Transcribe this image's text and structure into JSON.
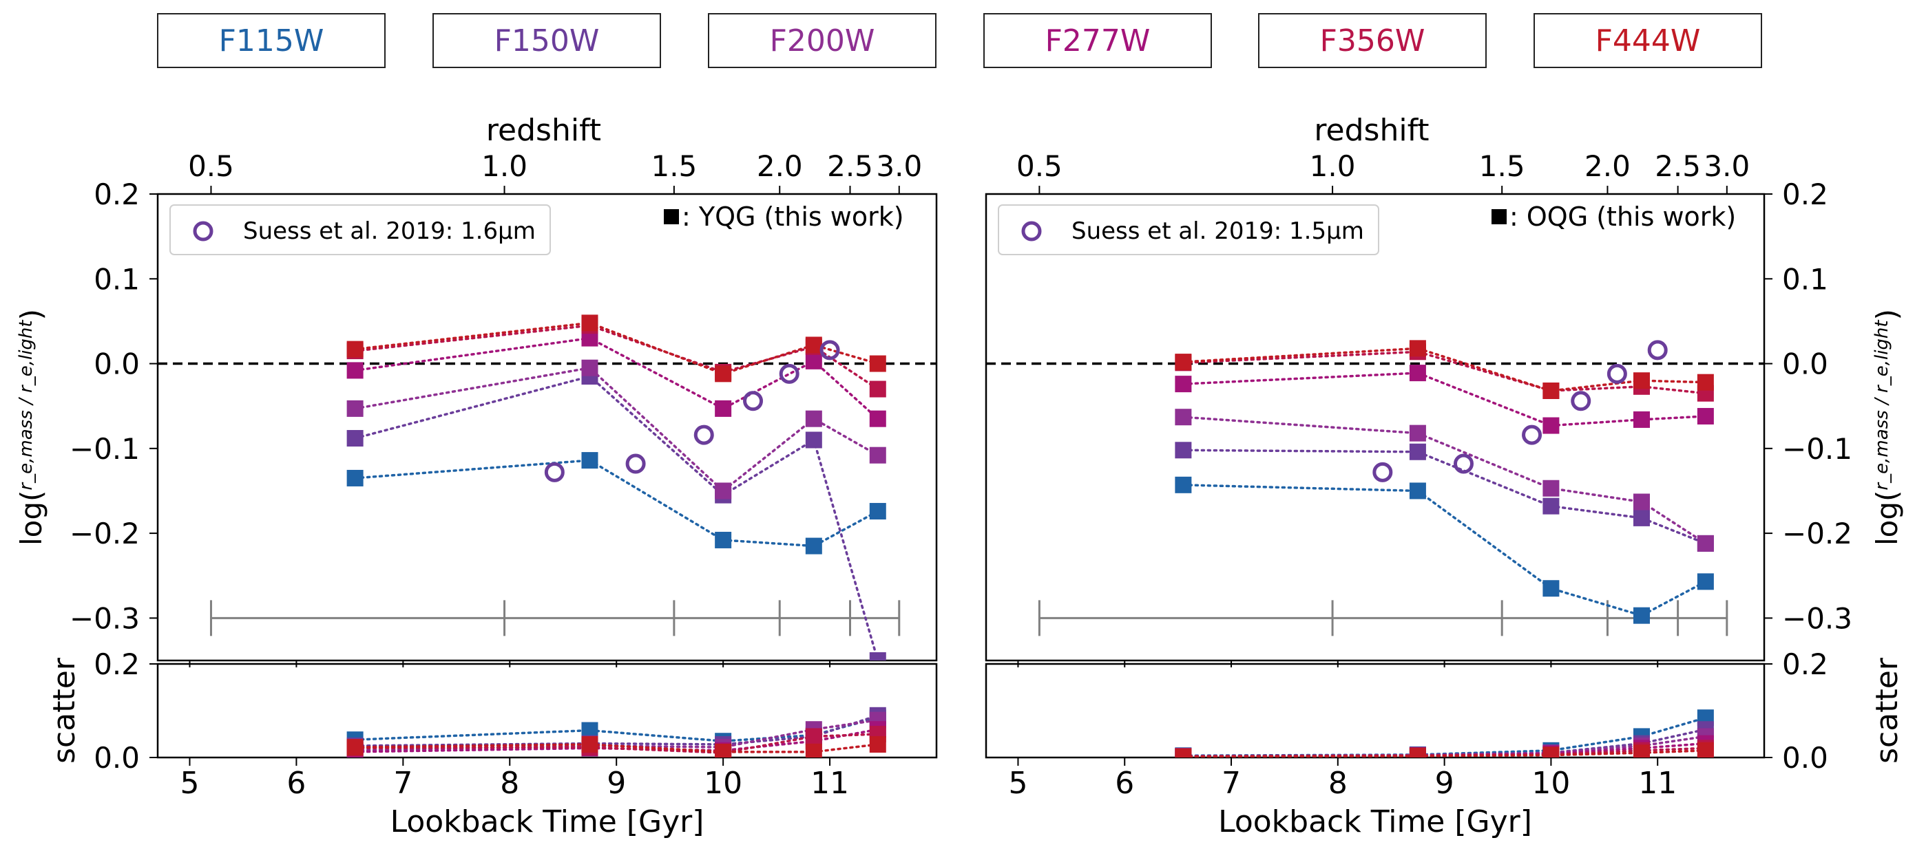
{
  "legend_boxes": [
    {
      "label": "F115W",
      "color": "#1f63a6"
    },
    {
      "label": "F150W",
      "color": "#6a3d9a"
    },
    {
      "label": "F200W",
      "color": "#8e3092"
    },
    {
      "label": "F277W",
      "color": "#a3137a"
    },
    {
      "label": "F356W",
      "color": "#b81549"
    },
    {
      "label": "F444W",
      "color": "#c11a24"
    }
  ],
  "chart_data": [
    {
      "type": "scatter",
      "panel": "YQG",
      "title": "",
      "xlabel": "Lookback Time [Gyr]",
      "ylabel": "log(r_e,mass / r_e,light)",
      "top_axis_label": "redshift",
      "top_ticks": [
        {
          "label": "0.5",
          "t": 5.2
        },
        {
          "label": "1.0",
          "t": 7.95
        },
        {
          "label": "1.5",
          "t": 9.54
        },
        {
          "label": "2.0",
          "t": 10.53
        },
        {
          "label": "2.5",
          "t": 11.19
        },
        {
          "label": "3.0",
          "t": 11.65
        }
      ],
      "xlim": [
        4.7,
        12.0
      ],
      "ylim": [
        -0.35,
        0.2
      ],
      "xticks": [
        5,
        6,
        7,
        8,
        9,
        10,
        11
      ],
      "yticks": [
        "0.2",
        "0.1",
        "0.0",
        "−0.1",
        "−0.2",
        "−0.3"
      ],
      "ytick_values": [
        0.2,
        0.1,
        0.0,
        -0.1,
        -0.2,
        -0.3
      ],
      "zero_line": 0.0,
      "annotation": ": YQG (this work)",
      "legend": {
        "label": "Suess et al. 2019: 1.6μm",
        "position": "top-left"
      },
      "x": [
        6.55,
        8.75,
        10.0,
        10.85,
        11.45
      ],
      "series": [
        {
          "name": "F115W",
          "color": "#1f63a6",
          "values": [
            -0.135,
            -0.114,
            -0.208,
            -0.215,
            -0.174
          ],
          "scatter": [
            0.038,
            0.058,
            0.035,
            0.048,
            0.085
          ]
        },
        {
          "name": "F150W",
          "color": "#6a3d9a",
          "values": [
            -0.088,
            -0.015,
            -0.155,
            -0.09,
            -0.35
          ],
          "scatter": [
            0.025,
            0.03,
            0.028,
            0.045,
            0.09
          ]
        },
        {
          "name": "F200W",
          "color": "#8e3092",
          "values": [
            -0.053,
            -0.005,
            -0.15,
            -0.065,
            -0.108
          ],
          "scatter": [
            0.015,
            0.025,
            0.022,
            0.06,
            0.08
          ]
        },
        {
          "name": "F277W",
          "color": "#a3137a",
          "values": [
            -0.008,
            0.03,
            -0.053,
            0.003,
            -0.065
          ],
          "scatter": [
            0.012,
            0.02,
            0.015,
            0.035,
            0.06
          ]
        },
        {
          "name": "F356W",
          "color": "#b81549",
          "values": [
            0.015,
            0.045,
            -0.01,
            0.02,
            -0.03
          ],
          "scatter": [
            0.02,
            0.022,
            0.01,
            0.045,
            0.05
          ]
        },
        {
          "name": "F444W",
          "color": "#c11a24",
          "values": [
            0.017,
            0.048,
            -0.012,
            0.022,
            0.0
          ],
          "scatter": [
            0.022,
            0.028,
            0.012,
            0.012,
            0.028
          ]
        }
      ],
      "suess_points": {
        "x": [
          8.42,
          9.18,
          9.82,
          10.28,
          10.62,
          11.0
        ],
        "y": [
          -0.128,
          -0.118,
          -0.084,
          -0.044,
          -0.012,
          0.016
        ]
      },
      "bottom_panel": {
        "ylabel": "scatter",
        "ylim": [
          0.0,
          0.2
        ],
        "yticks": [
          "0.2",
          "0.0"
        ],
        "ytick_values": [
          0.2,
          0.0
        ]
      }
    },
    {
      "type": "scatter",
      "panel": "OQG",
      "title": "",
      "xlabel": "Lookback Time [Gyr]",
      "ylabel": "log(r_e,mass / r_e,light)",
      "top_axis_label": "redshift",
      "top_ticks": [
        {
          "label": "0.5",
          "t": 5.2
        },
        {
          "label": "1.0",
          "t": 7.95
        },
        {
          "label": "1.5",
          "t": 9.54
        },
        {
          "label": "2.0",
          "t": 10.53
        },
        {
          "label": "2.5",
          "t": 11.19
        },
        {
          "label": "3.0",
          "t": 11.65
        }
      ],
      "xlim": [
        4.7,
        12.0
      ],
      "ylim": [
        -0.35,
        0.2
      ],
      "xticks": [
        5,
        6,
        7,
        8,
        9,
        10,
        11
      ],
      "yticks": [
        "0.2",
        "0.1",
        "0.0",
        "−0.1",
        "−0.2",
        "−0.3"
      ],
      "ytick_values": [
        0.2,
        0.1,
        0.0,
        -0.1,
        -0.2,
        -0.3
      ],
      "zero_line": 0.0,
      "annotation": ": OQG (this work)",
      "legend": {
        "label": "Suess et al. 2019: 1.5μm",
        "position": "top-left"
      },
      "x": [
        6.55,
        8.75,
        10.0,
        10.85,
        11.45
      ],
      "series": [
        {
          "name": "F115W",
          "color": "#1f63a6",
          "values": [
            -0.143,
            -0.15,
            -0.265,
            -0.297,
            -0.257
          ],
          "scatter": [
            0.004,
            0.006,
            0.015,
            0.045,
            0.085
          ]
        },
        {
          "name": "F150W",
          "color": "#6a3d9a",
          "values": [
            -0.102,
            -0.104,
            -0.168,
            -0.182,
            -0.212
          ],
          "scatter": [
            0.003,
            0.005,
            0.01,
            0.03,
            0.06
          ]
        },
        {
          "name": "F200W",
          "color": "#8e3092",
          "values": [
            -0.063,
            -0.082,
            -0.147,
            -0.163,
            -0.212
          ],
          "scatter": [
            0.003,
            0.005,
            0.01,
            0.025,
            0.045
          ]
        },
        {
          "name": "F277W",
          "color": "#a3137a",
          "values": [
            -0.024,
            -0.011,
            -0.073,
            -0.066,
            -0.062
          ],
          "scatter": [
            0.002,
            0.004,
            0.008,
            0.02,
            0.03
          ]
        },
        {
          "name": "F356W",
          "color": "#b81549",
          "values": [
            0.001,
            0.014,
            -0.032,
            -0.027,
            -0.035
          ],
          "scatter": [
            0.002,
            0.004,
            0.006,
            0.015,
            0.02
          ]
        },
        {
          "name": "F444W",
          "color": "#c11a24",
          "values": [
            0.002,
            0.018,
            -0.032,
            -0.02,
            -0.022
          ],
          "scatter": [
            0.002,
            0.003,
            0.005,
            0.01,
            0.015
          ]
        }
      ],
      "suess_points": {
        "x": [
          8.42,
          9.18,
          9.82,
          10.28,
          10.62,
          11.0
        ],
        "y": [
          -0.128,
          -0.118,
          -0.084,
          -0.044,
          -0.012,
          0.016
        ]
      },
      "bottom_panel": {
        "ylabel": "scatter",
        "ylim": [
          0.0,
          0.2
        ],
        "yticks": [
          "0.2",
          "0.0"
        ],
        "ytick_values": [
          0.2,
          0.0
        ]
      }
    }
  ]
}
